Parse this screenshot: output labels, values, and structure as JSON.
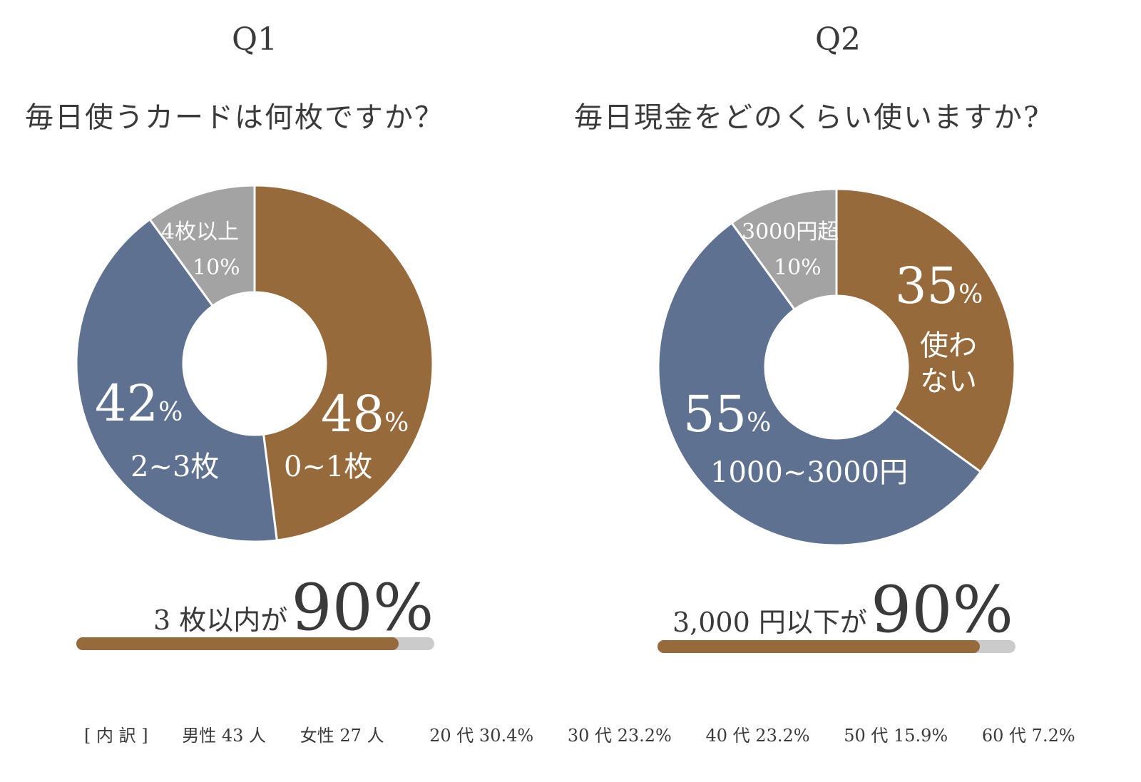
{
  "chart_data": [
    {
      "type": "pie",
      "label": "Q1",
      "title": "毎日使うカードは何枚ですか？",
      "slices": [
        {
          "name": "0~1枚",
          "value": 48,
          "color": "#976a3b"
        },
        {
          "name": "2~3枚",
          "value": 42,
          "color": "#5e7190"
        },
        {
          "name": "4枚以上",
          "value": 10,
          "color": "#a3a3a3"
        }
      ],
      "summary": {
        "text": "3 枚以内が",
        "value": "90%",
        "progress": 90
      }
    },
    {
      "type": "pie",
      "label": "Q2",
      "title": "毎日現金をどのくらい使いますか?",
      "slices": [
        {
          "name": "使わない",
          "value": 35,
          "color": "#976a3b"
        },
        {
          "name": "1000~3000円",
          "value": 55,
          "color": "#5e7190"
        },
        {
          "name": "3000円超",
          "value": 10,
          "color": "#a3a3a3"
        }
      ],
      "summary": {
        "text": "3,000 円以下が",
        "value": "90%",
        "progress": 90
      }
    }
  ],
  "labels": {
    "q1": {
      "a_pct": "48",
      "b_pct": "42",
      "c_pct": "10%",
      "pct_sign": "%",
      "a_line1": "0~1枚",
      "b_line1": "2~3枚",
      "c_line1": "4枚以上"
    },
    "q2": {
      "a_pct": "35",
      "b_pct": "55",
      "c_pct": "10%",
      "pct_sign": "%",
      "a_line1": "使わ",
      "a_line2": "ない",
      "b_line1": "1000~3000円",
      "c_line1": "3000円超"
    }
  },
  "footer": [
    "[ 内 訳 ]",
    "男性 43 人",
    "女性 27 人",
    "20 代 30.4%",
    "30 代 23.2%",
    "40 代 23.2%",
    "50 代 15.9%",
    "60 代 7.2%"
  ]
}
